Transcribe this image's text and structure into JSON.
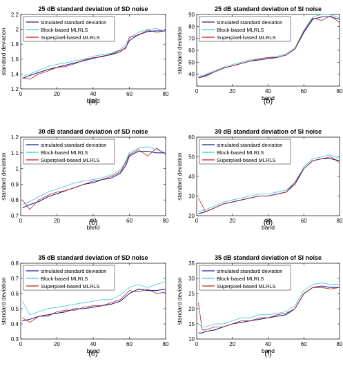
{
  "legend_labels": [
    "simulated standard deviation",
    "Block-based MLRLS",
    "Superpixel-based MLRLS"
  ],
  "series_colors": [
    "#1f1f8f",
    "#3fc3d6",
    "#b22222"
  ],
  "chart_data": [
    {
      "type": "line",
      "panel_label": "(a)",
      "title": "25 dB standard deviation of SD noise",
      "xlabel": "band",
      "ylabel": "standard deviation",
      "xlim": [
        0,
        80
      ],
      "ylim": [
        1.2,
        2.2
      ],
      "xticks": [
        0,
        20,
        40,
        60,
        80
      ],
      "yticks": [
        1.2,
        1.4,
        1.6,
        1.8,
        2.0,
        2.2
      ],
      "ytick_labels": [
        "1.2",
        "1.4",
        "1.6",
        "1.8",
        "2",
        "2.2"
      ],
      "legend_position": "top-left",
      "grid": false,
      "x": [
        1,
        5,
        10,
        15,
        20,
        25,
        30,
        35,
        40,
        45,
        50,
        55,
        58,
        60,
        65,
        70,
        75,
        80
      ],
      "series": [
        {
          "name": "simulated standard deviation",
          "values": [
            1.34,
            1.38,
            1.42,
            1.46,
            1.49,
            1.52,
            1.55,
            1.58,
            1.61,
            1.64,
            1.66,
            1.7,
            1.76,
            1.85,
            1.93,
            1.97,
            1.98,
            1.98
          ]
        },
        {
          "name": "Block-based MLRLS",
          "values": [
            1.37,
            1.4,
            1.45,
            1.5,
            1.53,
            1.55,
            1.58,
            1.6,
            1.64,
            1.66,
            1.68,
            1.73,
            1.8,
            1.88,
            1.96,
            2.0,
            2.01,
            1.97
          ]
        },
        {
          "name": "Superpixel-based MLRLS",
          "values": [
            1.35,
            1.33,
            1.4,
            1.44,
            1.49,
            1.5,
            1.54,
            1.59,
            1.62,
            1.63,
            1.67,
            1.72,
            1.74,
            1.9,
            1.92,
            1.99,
            1.96,
            1.98
          ]
        }
      ]
    },
    {
      "type": "line",
      "panel_label": "(b)",
      "title": "25 dB standard deviation of SI noise",
      "xlabel": "band",
      "ylabel": "standard deviation",
      "xlim": [
        0,
        80
      ],
      "ylim": [
        30,
        90
      ],
      "xticks": [
        0,
        20,
        40,
        60,
        80
      ],
      "yticks": [
        30,
        40,
        50,
        60,
        70,
        80,
        90
      ],
      "ytick_labels": [
        "",
        "40",
        "50",
        "60",
        "70",
        "80",
        "90"
      ],
      "legend_position": "top-left",
      "grid": false,
      "x": [
        1,
        5,
        10,
        15,
        20,
        25,
        30,
        35,
        40,
        45,
        50,
        55,
        60,
        65,
        70,
        75,
        80
      ],
      "series": [
        {
          "name": "simulated standard deviation",
          "values": [
            37,
            39,
            42,
            45,
            47,
            49,
            51,
            52,
            53,
            54,
            56,
            61,
            75,
            86,
            88,
            88,
            86
          ]
        },
        {
          "name": "Block-based MLRLS",
          "values": [
            38,
            40,
            43,
            46,
            48,
            50,
            52,
            53,
            54,
            55,
            57,
            62,
            77,
            88,
            90,
            90,
            87
          ]
        },
        {
          "name": "Superpixel-based MLRLS",
          "values": [
            37,
            38,
            42,
            45,
            47,
            49,
            51,
            53,
            54,
            54,
            56,
            61,
            76,
            87,
            85,
            89,
            83
          ]
        }
      ]
    },
    {
      "type": "line",
      "panel_label": "(c)",
      "title": "30 dB standard deviation of SD noise",
      "xlabel": "band",
      "ylabel": "standard deviation",
      "xlim": [
        0,
        80
      ],
      "ylim": [
        0.7,
        1.2
      ],
      "xticks": [
        0,
        20,
        40,
        60,
        80
      ],
      "yticks": [
        0.7,
        0.8,
        0.9,
        1.0,
        1.1,
        1.2
      ],
      "ytick_labels": [
        "0.7",
        "0.8",
        "0.9",
        "1",
        "1.1",
        "1.2"
      ],
      "legend_position": "top-left",
      "grid": false,
      "x": [
        1,
        5,
        10,
        15,
        20,
        25,
        30,
        35,
        40,
        45,
        50,
        55,
        58,
        60,
        65,
        70,
        75,
        80
      ],
      "series": [
        {
          "name": "simulated standard deviation",
          "values": [
            0.75,
            0.77,
            0.79,
            0.82,
            0.84,
            0.86,
            0.88,
            0.9,
            0.91,
            0.93,
            0.94,
            0.97,
            1.02,
            1.08,
            1.11,
            1.11,
            1.1,
            1.1
          ]
        },
        {
          "name": "Block-based MLRLS",
          "values": [
            0.77,
            0.79,
            0.82,
            0.85,
            0.87,
            0.89,
            0.91,
            0.92,
            0.93,
            0.94,
            0.96,
            0.99,
            1.05,
            1.1,
            1.13,
            1.14,
            1.12,
            1.1
          ]
        },
        {
          "name": "Superpixel-based MLRLS",
          "values": [
            0.8,
            0.74,
            0.8,
            0.83,
            0.85,
            0.86,
            0.88,
            0.9,
            0.92,
            0.93,
            0.95,
            0.98,
            1.04,
            1.09,
            1.12,
            1.08,
            1.13,
            1.09
          ]
        }
      ]
    },
    {
      "type": "line",
      "panel_label": "(d)",
      "title": "30 dB standard deviation of SI noise",
      "xlabel": "band",
      "ylabel": "standard deviation",
      "xlim": [
        0,
        80
      ],
      "ylim": [
        20,
        60
      ],
      "xticks": [
        0,
        20,
        40,
        60,
        80
      ],
      "yticks": [
        20,
        30,
        40,
        50,
        60
      ],
      "ytick_labels": [
        "20",
        "30",
        "40",
        "50",
        "60"
      ],
      "legend_position": "top-left",
      "grid": false,
      "x": [
        1,
        5,
        10,
        15,
        20,
        25,
        30,
        35,
        40,
        45,
        50,
        55,
        60,
        65,
        70,
        75,
        80
      ],
      "series": [
        {
          "name": "simulated standard deviation",
          "values": [
            21,
            22,
            24,
            26,
            27,
            28,
            29,
            30,
            30,
            31,
            32,
            36,
            44,
            48,
            49,
            49,
            48
          ]
        },
        {
          "name": "Block-based MLRLS",
          "values": [
            22,
            23,
            25,
            27,
            28,
            29,
            30,
            31,
            31,
            32,
            33,
            37,
            45,
            49,
            50,
            51,
            49
          ]
        },
        {
          "name": "Superpixel-based MLRLS",
          "values": [
            29,
            22,
            24,
            26,
            27,
            28,
            29,
            30,
            30,
            31,
            32,
            37,
            44,
            48,
            49,
            50,
            47
          ]
        }
      ]
    },
    {
      "type": "line",
      "panel_label": "(e)",
      "title": "35 dB standard deviation of SD noise",
      "xlabel": "band",
      "ylabel": "standard deviation",
      "xlim": [
        0,
        80
      ],
      "ylim": [
        0.3,
        0.8
      ],
      "xticks": [
        0,
        20,
        40,
        60,
        80
      ],
      "yticks": [
        0.3,
        0.4,
        0.5,
        0.6,
        0.7,
        0.8
      ],
      "ytick_labels": [
        "0.3",
        "0.4",
        "0.5",
        "0.6",
        "0.7",
        "0.8"
      ],
      "legend_position": "top-left",
      "grid": false,
      "x": [
        1,
        5,
        10,
        15,
        20,
        25,
        30,
        35,
        40,
        45,
        50,
        55,
        60,
        65,
        70,
        75,
        80
      ],
      "series": [
        {
          "name": "simulated standard deviation",
          "values": [
            0.42,
            0.43,
            0.45,
            0.46,
            0.47,
            0.48,
            0.5,
            0.5,
            0.51,
            0.52,
            0.53,
            0.55,
            0.6,
            0.63,
            0.62,
            0.62,
            0.63
          ]
        },
        {
          "name": "Block-based MLRLS",
          "values": [
            0.55,
            0.46,
            0.48,
            0.5,
            0.51,
            0.52,
            0.53,
            0.54,
            0.55,
            0.56,
            0.56,
            0.59,
            0.64,
            0.66,
            0.64,
            0.66,
            0.68
          ]
        },
        {
          "name": "Superpixel-based MLRLS",
          "values": [
            0.44,
            0.41,
            0.45,
            0.45,
            0.48,
            0.49,
            0.49,
            0.51,
            0.52,
            0.52,
            0.54,
            0.56,
            0.62,
            0.61,
            0.63,
            0.6,
            0.61
          ]
        }
      ]
    },
    {
      "type": "line",
      "panel_label": "(f)",
      "title": "35 dB standard deviation of SI noise",
      "xlabel": "band",
      "ylabel": "standard deviation",
      "xlim": [
        0,
        80
      ],
      "ylim": [
        10,
        35
      ],
      "xticks": [
        0,
        20,
        40,
        60,
        80
      ],
      "yticks": [
        10,
        15,
        20,
        25,
        30,
        35
      ],
      "ytick_labels": [
        "10",
        "15",
        "20",
        "25",
        "30",
        "35"
      ],
      "legend_position": "top-left",
      "grid": false,
      "x": [
        1,
        3,
        5,
        10,
        15,
        20,
        25,
        30,
        35,
        40,
        45,
        50,
        55,
        60,
        65,
        70,
        75,
        80
      ],
      "series": [
        {
          "name": "simulated standard deviation",
          "values": [
            12,
            12,
            12.5,
            13,
            14,
            15,
            15.5,
            16,
            16.5,
            17,
            17.5,
            18,
            20,
            25,
            27,
            27.5,
            27,
            27
          ]
        },
        {
          "name": "Block-based MLRLS",
          "values": [
            15,
            14,
            14,
            15,
            15,
            16,
            17,
            17,
            18,
            18,
            18.5,
            19,
            21,
            26,
            28,
            28.5,
            28,
            28
          ]
        },
        {
          "name": "Superpixel-based MLRLS",
          "values": [
            22,
            13,
            13,
            14,
            14,
            15,
            16,
            16,
            17,
            17,
            18,
            18.5,
            20,
            25,
            27,
            27,
            26.5,
            27
          ]
        }
      ]
    }
  ]
}
